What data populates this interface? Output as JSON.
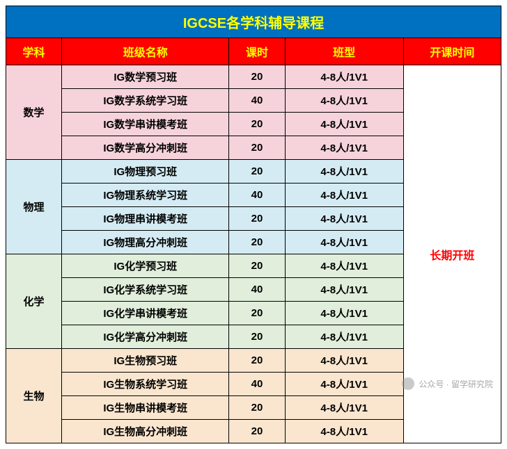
{
  "title": "IGCSE各学科辅导课程",
  "title_bg": "#0070c0",
  "title_color": "#ffff00",
  "header_bg": "#ff0000",
  "header_color": "#ffff00",
  "headers": {
    "subject": "学科",
    "class_name": "班级名称",
    "hours": "课时",
    "class_type": "班型",
    "schedule": "开课时间"
  },
  "col_widths": [
    "80px",
    "240px",
    "80px",
    "170px",
    "140px"
  ],
  "schedule_text": "长期开班",
  "subjects": [
    {
      "name": "数学",
      "bg": "#f6d3db",
      "classes": [
        {
          "name": "IG数学预习班",
          "hours": "20",
          "type": "4-8人/1V1"
        },
        {
          "name": "IG数学系统学习班",
          "hours": "40",
          "type": "4-8人/1V1"
        },
        {
          "name": "IG数学串讲模考班",
          "hours": "20",
          "type": "4-8人/1V1"
        },
        {
          "name": "IG数学高分冲刺班",
          "hours": "20",
          "type": "4-8人/1V1"
        }
      ]
    },
    {
      "name": "物理",
      "bg": "#d4ebf3",
      "classes": [
        {
          "name": "IG物理预习班",
          "hours": "20",
          "type": "4-8人/1V1"
        },
        {
          "name": "IG物理系统学习班",
          "hours": "40",
          "type": "4-8人/1V1"
        },
        {
          "name": "IG物理串讲模考班",
          "hours": "20",
          "type": "4-8人/1V1"
        },
        {
          "name": "IG物理高分冲刺班",
          "hours": "20",
          "type": "4-8人/1V1"
        }
      ]
    },
    {
      "name": "化学",
      "bg": "#e0eedb",
      "classes": [
        {
          "name": "IG化学预习班",
          "hours": "20",
          "type": "4-8人/1V1"
        },
        {
          "name": "IG化学系统学习班",
          "hours": "40",
          "type": "4-8人/1V1"
        },
        {
          "name": "IG化学串讲模考班",
          "hours": "20",
          "type": "4-8人/1V1"
        },
        {
          "name": "IG化学高分冲刺班",
          "hours": "20",
          "type": "4-8人/1V1"
        }
      ]
    },
    {
      "name": "生物",
      "bg": "#fae6cf",
      "classes": [
        {
          "name": "IG生物预习班",
          "hours": "20",
          "type": "4-8人/1V1"
        },
        {
          "name": "IG生物系统学习班",
          "hours": "40",
          "type": "4-8人/1V1"
        },
        {
          "name": "IG生物串讲模考班",
          "hours": "20",
          "type": "4-8人/1V1"
        },
        {
          "name": "IG生物高分冲刺班",
          "hours": "20",
          "type": "4-8人/1V1"
        }
      ]
    }
  ],
  "watermark": "公众号 · 留学研究院"
}
